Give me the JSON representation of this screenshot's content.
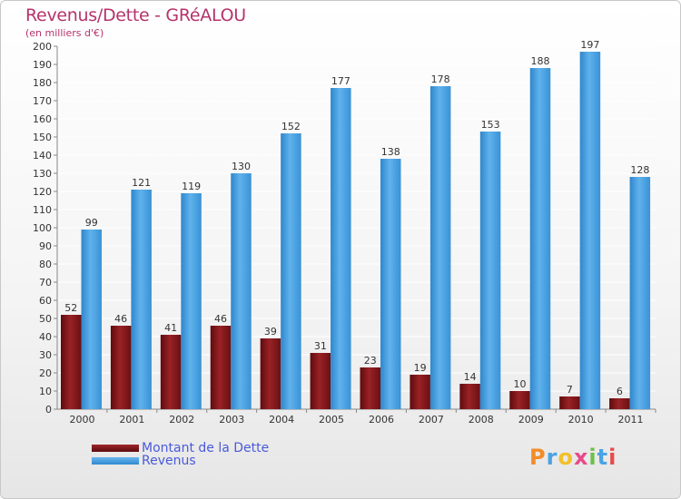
{
  "colors": {
    "debt": "#7b1417",
    "revenue": "#4aa3e3",
    "title": "#b5336b",
    "legend_text": "#4a5ad8"
  },
  "chart_data": {
    "type": "bar",
    "title": "Revenus/Dette - GRéALOU",
    "subtitle": "(en milliers d'€)",
    "categories": [
      "2000",
      "2001",
      "2002",
      "2003",
      "2004",
      "2005",
      "2006",
      "2007",
      "2008",
      "2009",
      "2010",
      "2011"
    ],
    "series": [
      {
        "name": "Montant de la Dette",
        "values": [
          52,
          46,
          41,
          46,
          39,
          31,
          23,
          19,
          14,
          10,
          7,
          6
        ]
      },
      {
        "name": "Revenus",
        "values": [
          99,
          121,
          119,
          130,
          152,
          177,
          138,
          178,
          153,
          188,
          197,
          128
        ]
      }
    ],
    "ylim": [
      0,
      200
    ],
    "ytick_step": 10,
    "grid": true,
    "legend_position": "bottom-left"
  },
  "legend": {
    "debt_label": "Montant de la Dette",
    "revenue_label": "Revenus"
  },
  "logo": {
    "text": "Proxiti"
  }
}
